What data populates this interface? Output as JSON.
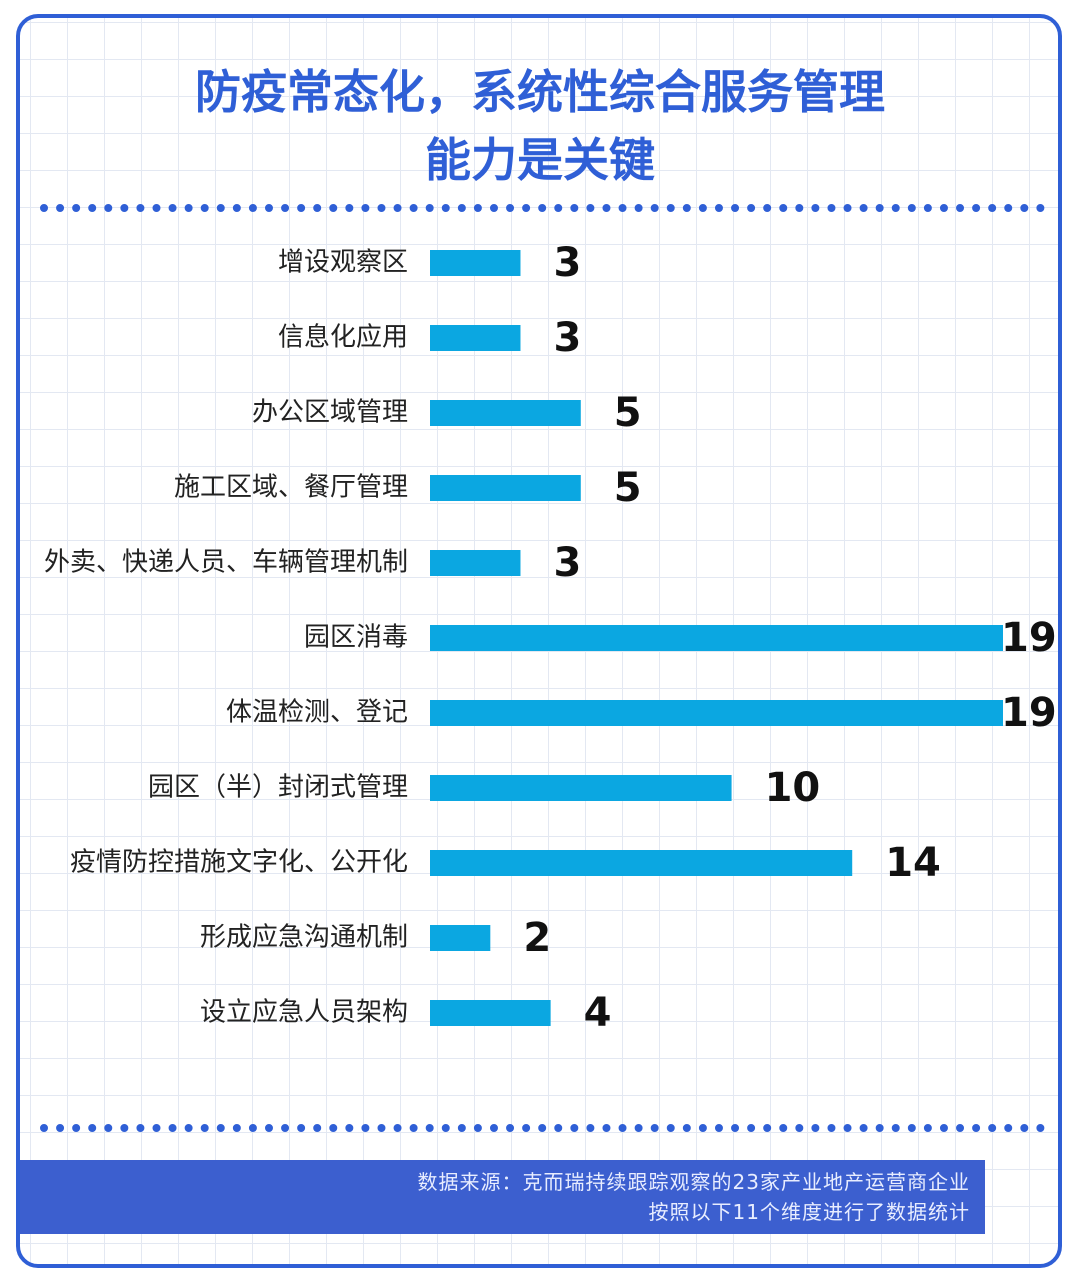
{
  "chart_data": {
    "type": "bar",
    "orientation": "horizontal",
    "title": [
      "防疫常态化，系统性综合服务管理",
      "能力是关键"
    ],
    "categories": [
      "增设观察区",
      "信息化应用",
      "办公区域管理",
      "施工区域、餐厅管理",
      "外卖、快递人员、车辆管理机制",
      "园区消毒",
      "体温检测、登记",
      "园区（半）封闭式管理",
      "疫情防控措施文字化、公开化",
      "形成应急沟通机制",
      "设立应急人员架构"
    ],
    "values": [
      3,
      3,
      5,
      5,
      3,
      19,
      19,
      10,
      14,
      2,
      4
    ],
    "color": "#0ba7e1",
    "source": [
      "数据来源：克而瑞持续跟踪观察的23家产业地产运营商企业",
      "按照以下11个维度进行了数据统计"
    ]
  }
}
